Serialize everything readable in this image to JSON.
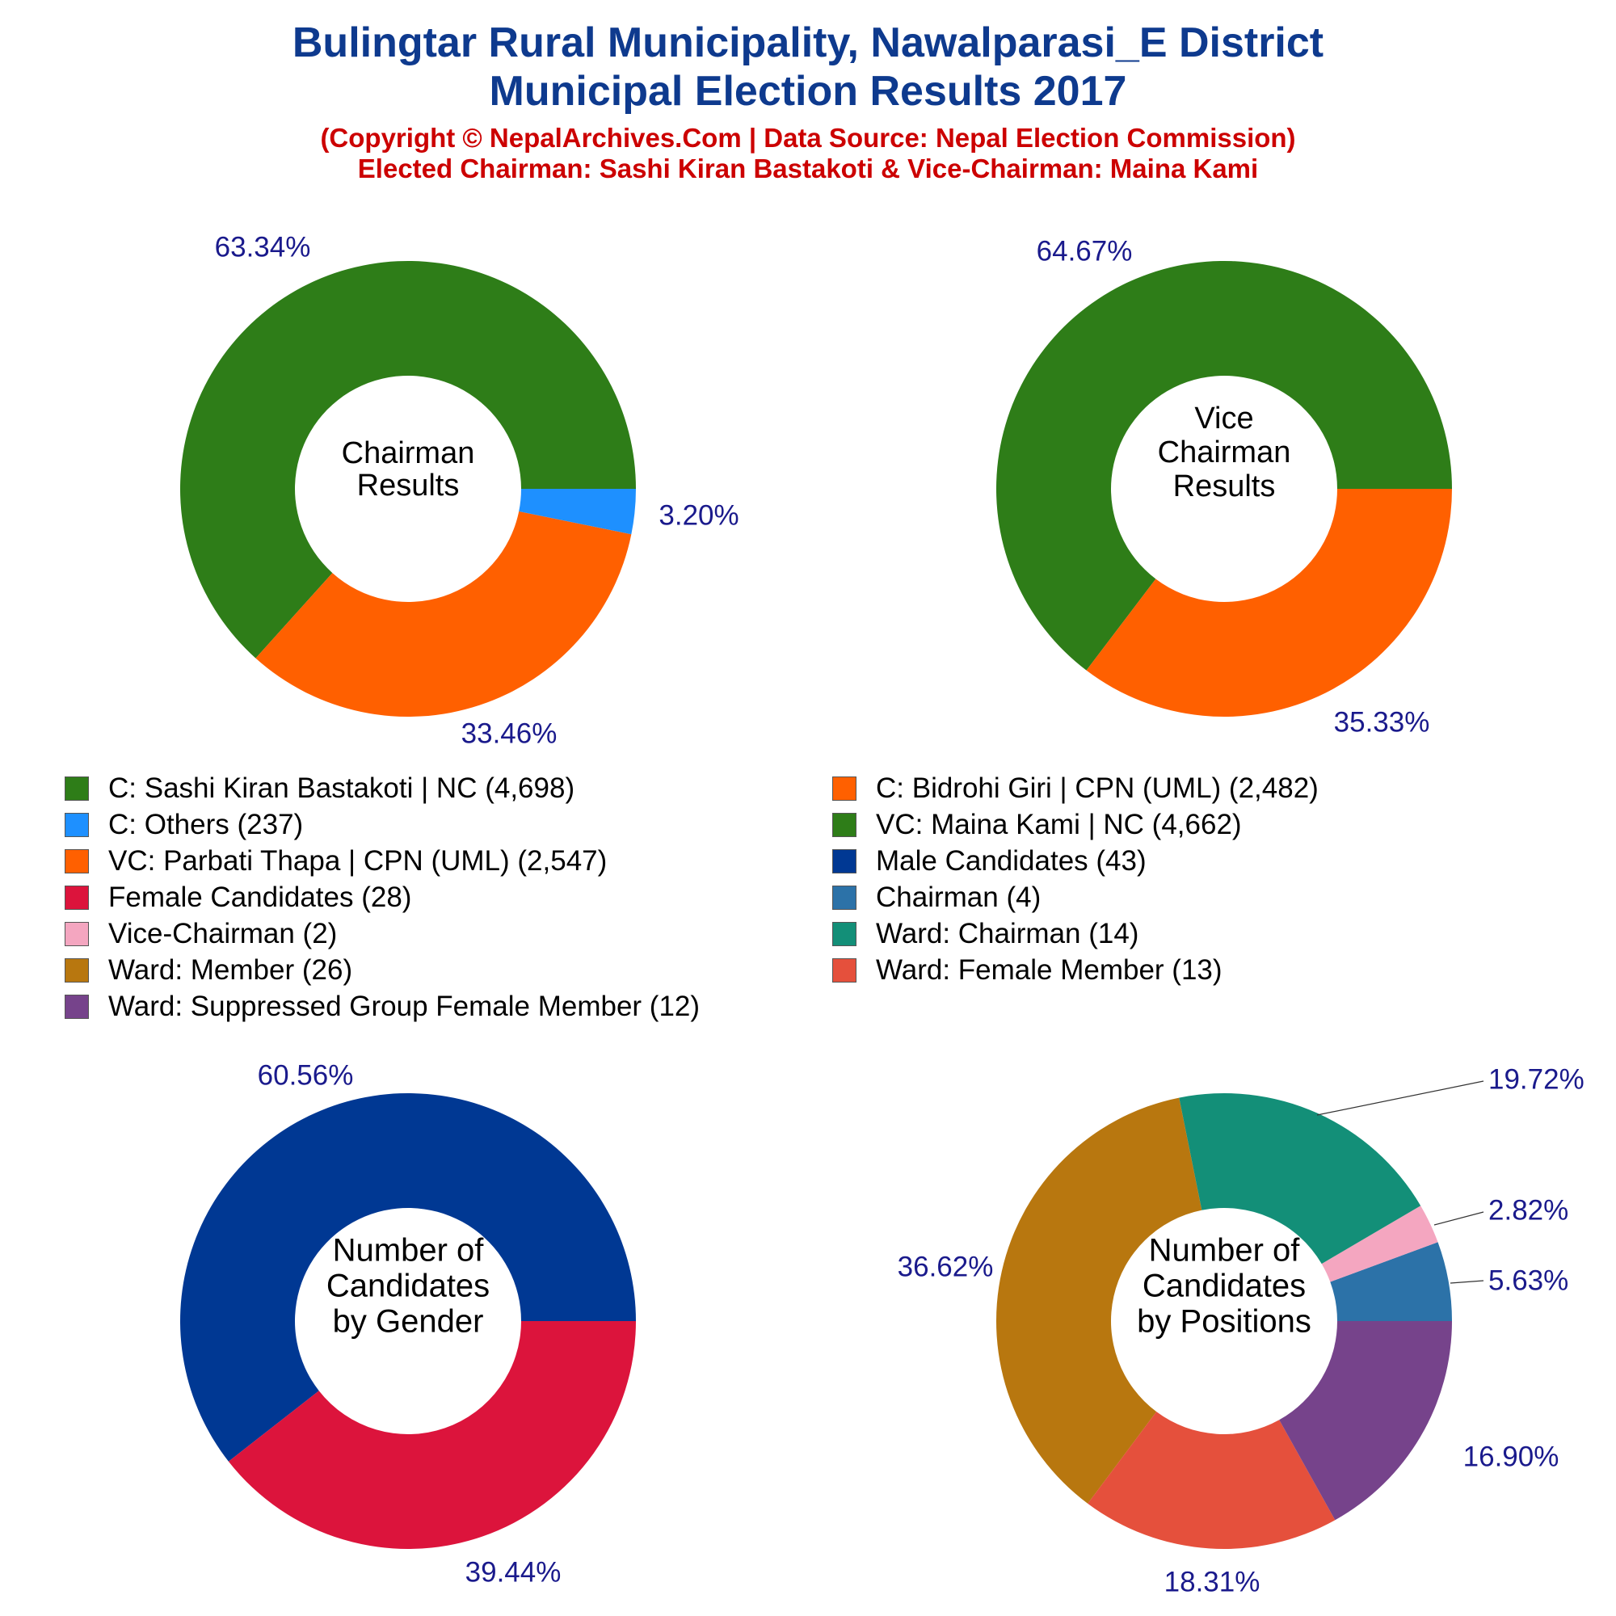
{
  "header": {
    "title_line1": "Bulingtar Rural Municipality, Nawalparasi_E District",
    "title_line2": "Municipal Election Results 2017",
    "subtitle_line1": "(Copyright © NepalArchives.Com | Data Source: Nepal Election Commission)",
    "subtitle_line2": "Elected Chairman: Sashi Kiran Bastakoti & Vice-Chairman: Maina Kami"
  },
  "colors": {
    "title": "#0e3a8e",
    "subtitle": "#cc0000",
    "percent_label": "#1a1a8c"
  },
  "legend": [
    {
      "label": "C: Sashi Kiran Bastakoti | NC (4,698)",
      "color": "#2e7d18"
    },
    {
      "label": "C: Bidrohi Giri | CPN (UML) (2,482)",
      "color": "#ff6000"
    },
    {
      "label": "C: Others (237)",
      "color": "#1e90ff"
    },
    {
      "label": "VC: Maina Kami | NC (4,662)",
      "color": "#2e7d18"
    },
    {
      "label": "VC: Parbati Thapa | CPN (UML) (2,547)",
      "color": "#ff6000"
    },
    {
      "label": "Male Candidates (43)",
      "color": "#003893"
    },
    {
      "label": "Female Candidates (28)",
      "color": "#dc143c"
    },
    {
      "label": "Chairman (4)",
      "color": "#2c72a8"
    },
    {
      "label": "Vice-Chairman (2)",
      "color": "#f4a6c0"
    },
    {
      "label": "Ward: Chairman (14)",
      "color": "#138f78"
    },
    {
      "label": "Ward: Member (26)",
      "color": "#b8770f"
    },
    {
      "label": "Ward: Female Member (13)",
      "color": "#e5503c"
    },
    {
      "label": "Ward: Suppressed Group Female Member (12)",
      "color": "#76438b"
    }
  ],
  "chart_data": [
    {
      "type": "pie",
      "center_label": [
        "Chairman",
        "Results"
      ],
      "series": [
        {
          "name": "C: Sashi Kiran Bastakoti | NC",
          "value": 4698,
          "label": "63.34%",
          "color": "#2e7d18"
        },
        {
          "name": "C: Bidrohi Giri | CPN (UML)",
          "value": 2482,
          "label": "33.46%",
          "color": "#ff6000"
        },
        {
          "name": "C: Others",
          "value": 237,
          "label": "3.20%",
          "color": "#1e90ff"
        }
      ]
    },
    {
      "type": "pie",
      "center_label": [
        "Vice",
        "Chairman",
        "Results"
      ],
      "series": [
        {
          "name": "VC: Maina Kami | NC",
          "value": 4662,
          "label": "64.67%",
          "color": "#2e7d18"
        },
        {
          "name": "VC: Parbati Thapa | CPN (UML)",
          "value": 2547,
          "label": "35.33%",
          "color": "#ff6000"
        }
      ]
    },
    {
      "type": "pie",
      "center_label": [
        "Number of",
        "Candidates",
        "by Gender"
      ],
      "series": [
        {
          "name": "Male Candidates",
          "value": 43,
          "label": "60.56%",
          "color": "#003893"
        },
        {
          "name": "Female Candidates",
          "value": 28,
          "label": "39.44%",
          "color": "#dc143c"
        }
      ]
    },
    {
      "type": "pie",
      "center_label": [
        "Number of",
        "Candidates",
        "by Positions"
      ],
      "series": [
        {
          "name": "Chairman",
          "value": 4,
          "label": "5.63%",
          "color": "#2c72a8"
        },
        {
          "name": "Vice-Chairman",
          "value": 2,
          "label": "2.82%",
          "color": "#f4a6c0"
        },
        {
          "name": "Ward: Chairman",
          "value": 14,
          "label": "19.72%",
          "color": "#138f78"
        },
        {
          "name": "Ward: Member",
          "value": 26,
          "label": "36.62%",
          "color": "#b8770f"
        },
        {
          "name": "Ward: Female Member",
          "value": 13,
          "label": "18.31%",
          "color": "#e5503c"
        },
        {
          "name": "Ward: Suppressed Group Female Member",
          "value": 12,
          "label": "16.90%",
          "color": "#76438b"
        }
      ]
    }
  ]
}
